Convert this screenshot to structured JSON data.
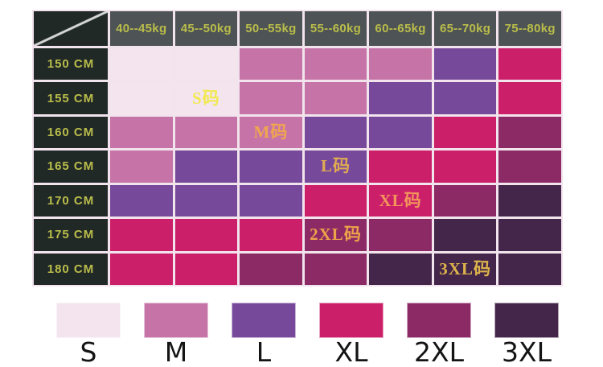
{
  "chart_data": {
    "type": "heatmap",
    "title": "",
    "x_categories": [
      "40--45kg",
      "45--50kg",
      "50--55kg",
      "55--60kg",
      "60--65kg",
      "65--70kg",
      "75--80kg"
    ],
    "y_categories": [
      "150 CM",
      "155 CM",
      "160 CM",
      "165 CM",
      "170 CM",
      "175 CM",
      "180 CM"
    ],
    "values": [
      [
        "S",
        "S",
        "M",
        "M",
        "M",
        "L",
        "XL"
      ],
      [
        "S",
        "S",
        "M",
        "M",
        "L",
        "L",
        "XL"
      ],
      [
        "M",
        "M",
        "M",
        "L",
        "L",
        "XL",
        "2XL"
      ],
      [
        "M",
        "L",
        "L",
        "L",
        "XL",
        "XL",
        "2XL"
      ],
      [
        "L",
        "L",
        "L",
        "XL",
        "XL",
        "2XL",
        "3XL"
      ],
      [
        "XL",
        "XL",
        "XL",
        "2XL",
        "2XL",
        "3XL",
        "3XL"
      ],
      [
        "XL",
        "XL",
        "2XL",
        "2XL",
        "3XL",
        "3XL",
        "3XL"
      ]
    ],
    "annotations": [
      {
        "row": 1,
        "col": 1,
        "text": "S码"
      },
      {
        "row": 2,
        "col": 2,
        "text": "M码"
      },
      {
        "row": 3,
        "col": 3,
        "text": "L码"
      },
      {
        "row": 4,
        "col": 4,
        "text": "XL码"
      },
      {
        "row": 5,
        "col": 3,
        "text": "2XL码"
      },
      {
        "row": 6,
        "col": 5,
        "text": "3XL码"
      }
    ],
    "legend": [
      "S",
      "M",
      "L",
      "XL",
      "2XL",
      "3XL"
    ],
    "legend_position": "bottom",
    "size_colors": {
      "S": "#f3e4ee",
      "M": "#c673a8",
      "L": "#77499b",
      "XL": "#cb2069",
      "2XL": "#8c2a66",
      "3XL": "#44264a"
    }
  },
  "theme": {
    "header_bg": "#4e5355",
    "header_text": "#b9bd4a",
    "row_label_bg": "#212927",
    "row_label_text": "#b9bd4a",
    "corner_bg": "#212927",
    "corner_diagonal": "#d6d7d7",
    "grid_line": "#f2e4ed",
    "legend_text": "#141414",
    "tag_colors": {
      "S码": "#f1e94f",
      "M码": "#f0a64f",
      "L码": "#e0ab52",
      "XL码": "#f2955b",
      "2XL码": "#eea34a",
      "3XL码": "#ddb44b"
    }
  }
}
